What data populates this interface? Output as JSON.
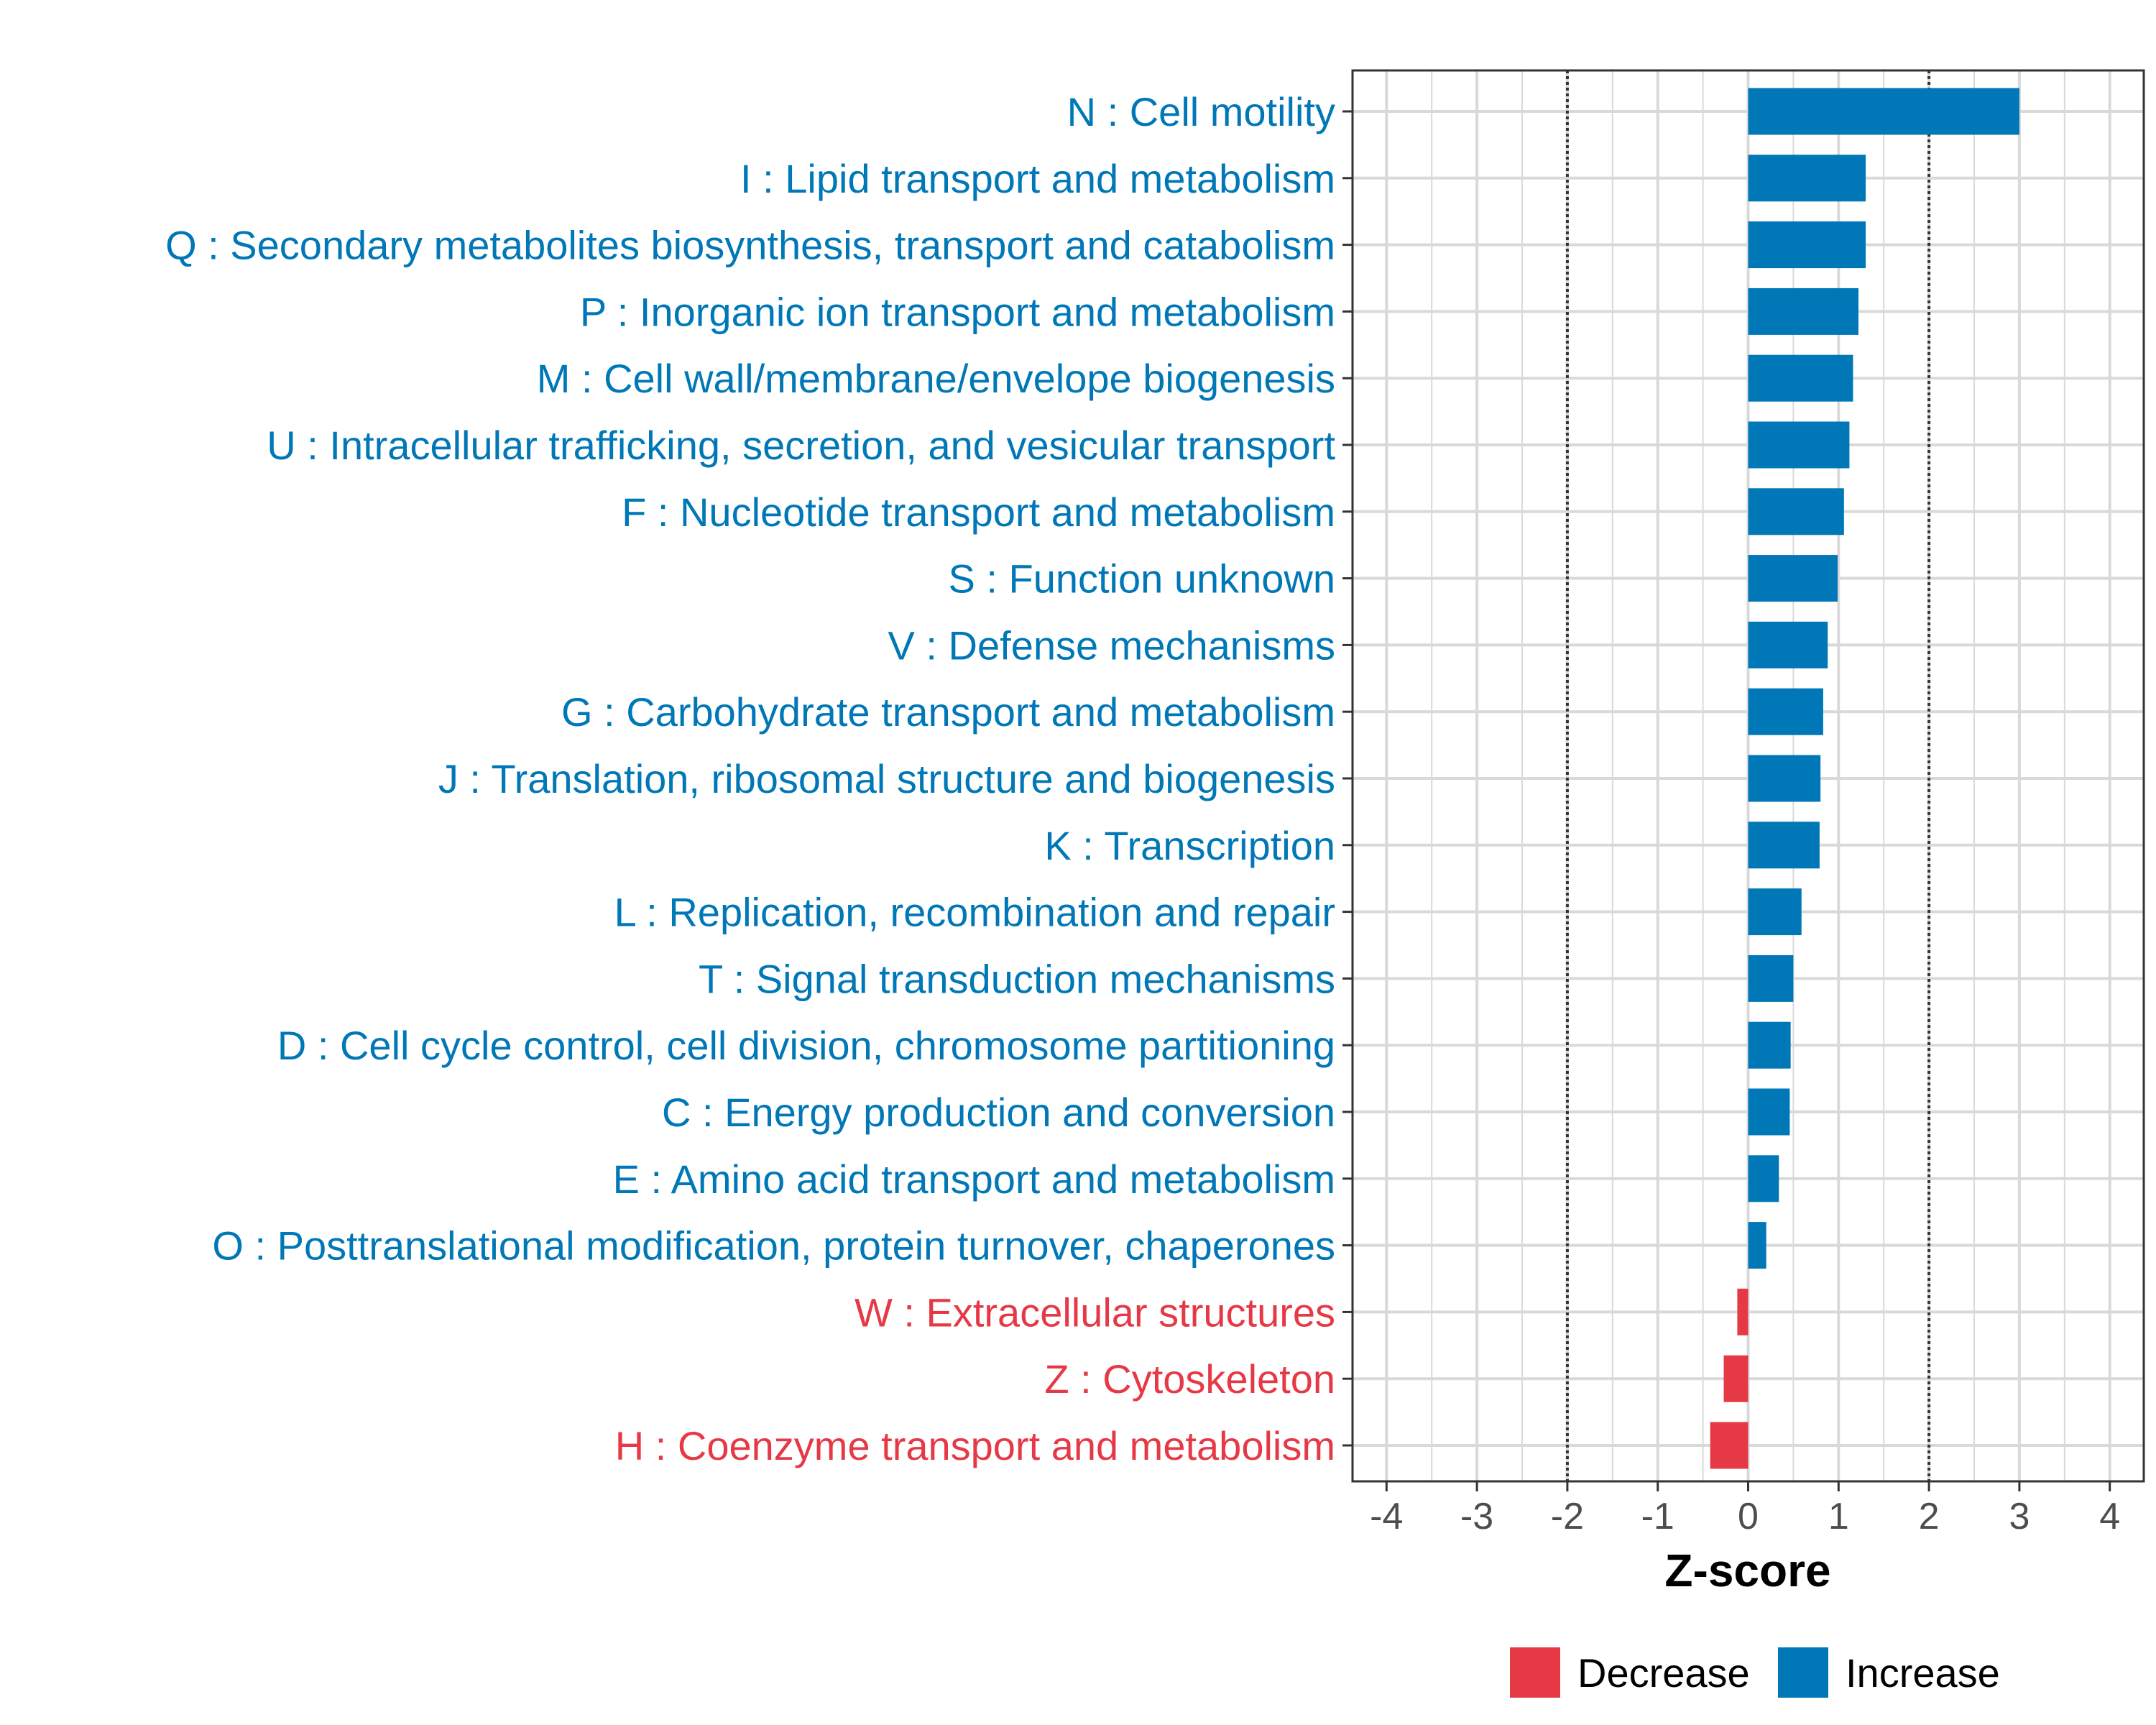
{
  "chart_data": {
    "type": "bar",
    "orientation": "horizontal",
    "xlabel": "Z-score",
    "xlim": [
      -4.4,
      4.4
    ],
    "x_ticks": [
      -4,
      -3,
      -2,
      -1,
      0,
      1,
      2,
      3,
      4
    ],
    "x_tick_labels": [
      "-4",
      "-3",
      "-2",
      "-1",
      "0",
      "1",
      "2",
      "3",
      "4"
    ],
    "reference_lines": [
      -2,
      2
    ],
    "grid": true,
    "categories": [
      "N : Cell motility",
      "I : Lipid transport and metabolism",
      "Q : Secondary metabolites biosynthesis, transport and catabolism",
      "P : Inorganic ion transport and metabolism",
      "M : Cell wall/membrane/envelope biogenesis",
      "U : Intracellular trafficking, secretion, and vesicular transport",
      "F : Nucleotide transport and metabolism",
      "S : Function unknown",
      "V : Defense mechanisms",
      "G : Carbohydrate transport and metabolism",
      "J : Translation, ribosomal structure and biogenesis",
      "K : Transcription",
      "L : Replication, recombination and repair",
      "T : Signal transduction mechanisms",
      "D : Cell cycle control, cell division, chromosome partitioning",
      "C : Energy production and conversion",
      "E : Amino acid transport and metabolism",
      "O : Posttranslational modification, protein turnover, chaperones",
      "W : Extracellular structures",
      "Z : Cytoskeleton",
      "H : Coenzyme transport and metabolism"
    ],
    "values": [
      3.0,
      1.3,
      1.3,
      1.22,
      1.16,
      1.12,
      1.06,
      0.99,
      0.88,
      0.83,
      0.8,
      0.79,
      0.59,
      0.5,
      0.47,
      0.46,
      0.34,
      0.2,
      -0.12,
      -0.27,
      -0.42
    ],
    "groups": [
      "Increase",
      "Increase",
      "Increase",
      "Increase",
      "Increase",
      "Increase",
      "Increase",
      "Increase",
      "Increase",
      "Increase",
      "Increase",
      "Increase",
      "Increase",
      "Increase",
      "Increase",
      "Increase",
      "Increase",
      "Increase",
      "Decrease",
      "Decrease",
      "Decrease"
    ],
    "legend": {
      "position": "bottom",
      "entries": [
        {
          "label": "Decrease",
          "color": "#E63946"
        },
        {
          "label": "Increase",
          "color": "#0077B6"
        }
      ]
    },
    "colors": {
      "Decrease": "#E63946",
      "Increase": "#0077B6",
      "grid": "#d9d9d9",
      "axis": "#333333",
      "tick_label": "#4d4d4d"
    }
  }
}
